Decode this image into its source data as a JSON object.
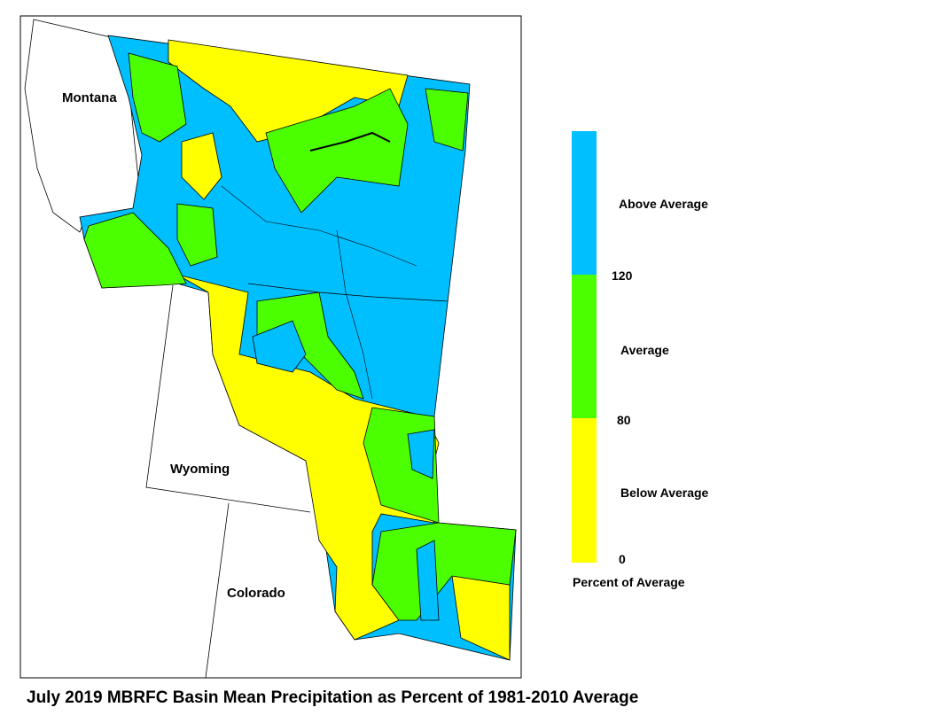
{
  "title": "July 2019 MBRFC Basin Mean Precipitation as Percent of 1981-2010 Average",
  "map": {
    "labels": [
      "Montana",
      "Wyoming",
      "Colorado"
    ]
  },
  "legend": {
    "title": "Percent of Average",
    "classes": [
      {
        "label": "Above Average",
        "color": "#00bfff"
      },
      {
        "label": "Average",
        "color": "#4cff00"
      },
      {
        "label": "Below Average",
        "color": "#ffff00"
      }
    ],
    "ticks": [
      120,
      80,
      0
    ]
  }
}
